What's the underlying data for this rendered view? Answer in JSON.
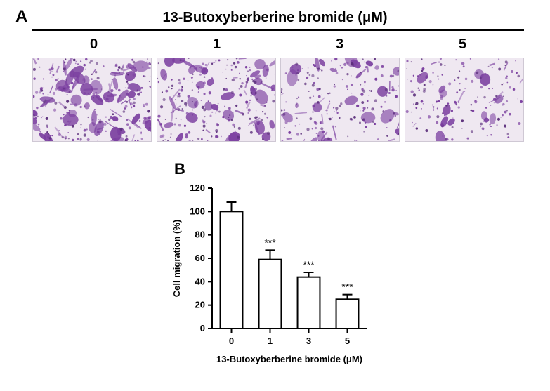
{
  "panelA": {
    "label": "A",
    "compound_title": "13-Butoxyberberine bromide (μM)",
    "doses": [
      "0",
      "1",
      "3",
      "5"
    ],
    "micrograph": {
      "bg": "#efe8f1",
      "stain": "#7b3fa0",
      "stain_dark": "#5a2d7a",
      "densities": [
        0.75,
        0.55,
        0.38,
        0.22
      ]
    }
  },
  "panelB": {
    "label": "B",
    "y_label": "Cell migration (%)",
    "x_label": "13-Butoxyberberine bromide (μM)",
    "categories": [
      "0",
      "1",
      "3",
      "5"
    ],
    "values": [
      100,
      59,
      44,
      25
    ],
    "errors": [
      8,
      8,
      4,
      4
    ],
    "sig": [
      "",
      "***",
      "***",
      "***"
    ],
    "ylim": [
      0,
      120
    ],
    "ytick_step": 20,
    "bar_fill": "#ffffff",
    "bar_stroke": "#000000",
    "axis_color": "#000000",
    "tick_fontsize": 13,
    "label_fontsize": 13,
    "sig_fontsize": 14,
    "title_fontsize": 20
  }
}
